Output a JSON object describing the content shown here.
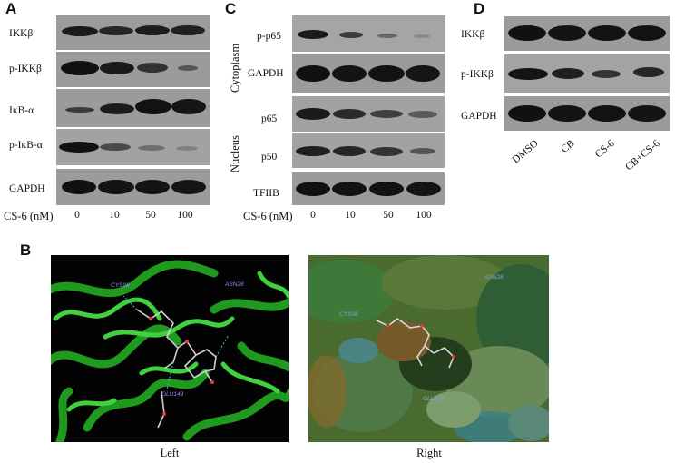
{
  "panels": {
    "A": {
      "letter": "A",
      "rows": [
        "IKKβ",
        "p-IKKβ",
        "IκB-α",
        "p-IκB-α",
        "GAPDH"
      ],
      "dose_title": "CS-6 (nM)",
      "doses": [
        "0",
        "10",
        "50",
        "100"
      ]
    },
    "C": {
      "letter": "C",
      "group_cytoplasm": "Cytoplasm",
      "group_nucleus": "Nucleus",
      "cyto_rows": [
        "p-p65",
        "GAPDH"
      ],
      "nuc_rows": [
        "p65",
        "p50",
        "TFIIB"
      ],
      "dose_title": "CS-6 (nM)",
      "doses": [
        "0",
        "10",
        "50",
        "100"
      ]
    },
    "D": {
      "letter": "D",
      "rows": [
        "IKKβ",
        "p-IKKβ",
        "GAPDH"
      ],
      "conditions": [
        "DMSO",
        "CB",
        "CS-6",
        "CB+CS-6"
      ]
    },
    "B": {
      "letter": "B",
      "left_caption": "Left",
      "right_caption": "Right",
      "left_residues": [
        "CYS98",
        "ASN28",
        "GLU149"
      ],
      "right_residues": [
        "CYS98",
        "ASN28",
        "GLU149"
      ]
    }
  },
  "colors": {
    "blot_bg": "#9b9b9b",
    "band": "#111111",
    "ribbon": "#22b022",
    "surface": "#3d6a2a"
  }
}
